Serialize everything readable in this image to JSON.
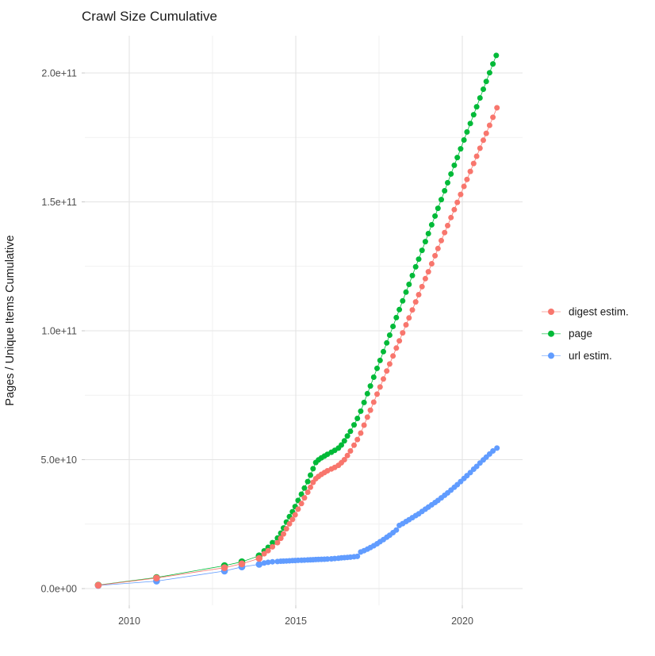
{
  "title": "Crawl Size Cumulative",
  "y_axis": {
    "label": "Pages / Unique Items Cumulative",
    "ticks": [
      "0.0e+00",
      "5.0e+10",
      "1.0e+11",
      "1.5e+11",
      "2.0e+11"
    ],
    "tick_values_e9": [
      0,
      50,
      100,
      150,
      200
    ],
    "minor_values_e9": [
      25,
      75,
      125,
      175
    ]
  },
  "x_axis": {
    "ticks": [
      "2010",
      "2015",
      "2020"
    ],
    "tick_values": [
      2010,
      2015,
      2020
    ],
    "minor_values": [
      2012.5,
      2017.5
    ]
  },
  "legend": [
    {
      "label": "digest estim.",
      "color": "#F8766D"
    },
    {
      "label": "page",
      "color": "#00BA38"
    },
    {
      "label": "url estim.",
      "color": "#619CFF"
    }
  ],
  "colors": {
    "digest": "#F8766D",
    "page": "#00BA38",
    "url": "#619CFF",
    "grid_major": "#e3e3e3",
    "grid_minor": "#f1f1f1",
    "tick_mark": "#c9c9c9",
    "tick_text": "#4d4d4d",
    "text": "#1a1a1a"
  },
  "chart_data": {
    "type": "scatter",
    "title": "Crawl Size Cumulative",
    "xlabel": "",
    "ylabel": "Pages / Unique Items Cumulative",
    "x_unit": "year (decimal)",
    "y_unit": "items, in billions (1e9)",
    "x_range": [
      2008.7,
      2021.8
    ],
    "y_range_e9": [
      -7,
      216
    ],
    "grid": "major+minor",
    "legend_position": "right",
    "series": [
      {
        "name": "url estim.",
        "color": "#619CFF",
        "points": [
          [
            2009.07,
            1.2
          ],
          [
            2010.82,
            2.9
          ],
          [
            2012.86,
            6.8
          ],
          [
            2013.38,
            8.4
          ],
          [
            2013.9,
            9.4
          ],
          [
            2014.05,
            9.9
          ],
          [
            2014.17,
            10.2
          ],
          [
            2014.3,
            10.4
          ],
          [
            2014.45,
            10.5
          ],
          [
            2014.55,
            10.6
          ],
          [
            2014.63,
            10.65
          ],
          [
            2014.72,
            10.7
          ],
          [
            2014.81,
            10.78
          ],
          [
            2014.9,
            10.85
          ],
          [
            2014.98,
            10.9
          ],
          [
            2015.07,
            10.95
          ],
          [
            2015.17,
            11.0
          ],
          [
            2015.26,
            11.05
          ],
          [
            2015.36,
            11.1
          ],
          [
            2015.44,
            11.15
          ],
          [
            2015.52,
            11.2
          ],
          [
            2015.6,
            11.25
          ],
          [
            2015.68,
            11.3
          ],
          [
            2015.77,
            11.35
          ],
          [
            2015.86,
            11.4
          ],
          [
            2015.95,
            11.45
          ],
          [
            2016.07,
            11.55
          ],
          [
            2016.17,
            11.65
          ],
          [
            2016.28,
            11.75
          ],
          [
            2016.37,
            11.9
          ],
          [
            2016.46,
            12.0
          ],
          [
            2016.55,
            12.1
          ],
          [
            2016.64,
            12.2
          ],
          [
            2016.75,
            12.35
          ],
          [
            2016.85,
            12.5
          ],
          [
            2016.95,
            14.2
          ],
          [
            2017.05,
            14.7
          ],
          [
            2017.15,
            15.3
          ],
          [
            2017.24,
            15.9
          ],
          [
            2017.34,
            16.6
          ],
          [
            2017.44,
            17.4
          ],
          [
            2017.53,
            18.2
          ],
          [
            2017.63,
            19.0
          ],
          [
            2017.73,
            19.9
          ],
          [
            2017.82,
            20.7
          ],
          [
            2017.92,
            21.7
          ],
          [
            2018.02,
            22.7
          ],
          [
            2018.11,
            24.5
          ],
          [
            2018.21,
            25.2
          ],
          [
            2018.31,
            26.0
          ],
          [
            2018.4,
            26.7
          ],
          [
            2018.5,
            27.5
          ],
          [
            2018.6,
            28.3
          ],
          [
            2018.69,
            29.0
          ],
          [
            2018.79,
            29.9
          ],
          [
            2018.89,
            30.8
          ],
          [
            2018.98,
            31.6
          ],
          [
            2019.08,
            32.5
          ],
          [
            2019.18,
            33.4
          ],
          [
            2019.27,
            34.2
          ],
          [
            2019.37,
            35.2
          ],
          [
            2019.47,
            36.2
          ],
          [
            2019.56,
            37.1
          ],
          [
            2019.66,
            38.2
          ],
          [
            2019.76,
            39.3
          ],
          [
            2019.85,
            40.3
          ],
          [
            2019.95,
            41.5
          ],
          [
            2020.05,
            42.7
          ],
          [
            2020.14,
            43.8
          ],
          [
            2020.24,
            45.0
          ],
          [
            2020.34,
            46.3
          ],
          [
            2020.43,
            47.4
          ],
          [
            2020.53,
            48.7
          ],
          [
            2020.63,
            49.9
          ],
          [
            2020.72,
            51.0
          ],
          [
            2020.82,
            52.2
          ],
          [
            2020.92,
            53.4
          ],
          [
            2021.04,
            54.5
          ]
        ]
      },
      {
        "name": "page",
        "color": "#00BA38",
        "points": [
          [
            2009.07,
            1.4
          ],
          [
            2010.82,
            4.3
          ],
          [
            2012.86,
            8.9
          ],
          [
            2013.38,
            10.4
          ],
          [
            2013.9,
            12.7
          ],
          [
            2014.05,
            14.6
          ],
          [
            2014.17,
            16.0
          ],
          [
            2014.3,
            17.8
          ],
          [
            2014.45,
            19.6
          ],
          [
            2014.55,
            21.5
          ],
          [
            2014.63,
            23.5
          ],
          [
            2014.72,
            25.8
          ],
          [
            2014.81,
            27.9
          ],
          [
            2014.9,
            29.8
          ],
          [
            2014.98,
            31.8
          ],
          [
            2015.07,
            34.2
          ],
          [
            2015.17,
            36.6
          ],
          [
            2015.26,
            39.0
          ],
          [
            2015.36,
            41.5
          ],
          [
            2015.44,
            44.0
          ],
          [
            2015.52,
            46.5
          ],
          [
            2015.6,
            48.9
          ],
          [
            2015.68,
            49.9
          ],
          [
            2015.77,
            50.7
          ],
          [
            2015.86,
            51.4
          ],
          [
            2015.95,
            52.1
          ],
          [
            2016.07,
            52.9
          ],
          [
            2016.17,
            53.6
          ],
          [
            2016.28,
            54.5
          ],
          [
            2016.37,
            55.7
          ],
          [
            2016.46,
            57.3
          ],
          [
            2016.55,
            59.2
          ],
          [
            2016.64,
            61.0
          ],
          [
            2016.75,
            63.5
          ],
          [
            2016.85,
            66.0
          ],
          [
            2016.95,
            68.8
          ],
          [
            2017.05,
            72.2
          ],
          [
            2017.15,
            75.6
          ],
          [
            2017.24,
            78.6
          ],
          [
            2017.34,
            82.0
          ],
          [
            2017.44,
            85.4
          ],
          [
            2017.53,
            88.5
          ],
          [
            2017.63,
            91.9
          ],
          [
            2017.73,
            95.3
          ],
          [
            2017.82,
            98.3
          ],
          [
            2017.92,
            101.7
          ],
          [
            2018.02,
            105.1
          ],
          [
            2018.11,
            108.2
          ],
          [
            2018.21,
            111.6
          ],
          [
            2018.31,
            115.0
          ],
          [
            2018.4,
            118.0
          ],
          [
            2018.5,
            121.4
          ],
          [
            2018.6,
            124.8
          ],
          [
            2018.69,
            127.8
          ],
          [
            2018.79,
            131.2
          ],
          [
            2018.89,
            134.6
          ],
          [
            2018.98,
            137.7
          ],
          [
            2019.08,
            141.1
          ],
          [
            2019.18,
            144.5
          ],
          [
            2019.27,
            147.5
          ],
          [
            2019.37,
            150.9
          ],
          [
            2019.47,
            154.3
          ],
          [
            2019.56,
            157.4
          ],
          [
            2019.66,
            160.8
          ],
          [
            2019.76,
            164.2
          ],
          [
            2019.85,
            167.2
          ],
          [
            2019.95,
            170.6
          ],
          [
            2020.05,
            174.0
          ],
          [
            2020.14,
            177.1
          ],
          [
            2020.24,
            180.4
          ],
          [
            2020.34,
            183.8
          ],
          [
            2020.43,
            186.9
          ],
          [
            2020.53,
            190.3
          ],
          [
            2020.63,
            193.7
          ],
          [
            2020.72,
            196.7
          ],
          [
            2020.82,
            200.1
          ],
          [
            2020.92,
            203.5
          ],
          [
            2021.02,
            206.8
          ]
        ]
      },
      {
        "name": "digest estim.",
        "color": "#F8766D",
        "points": [
          [
            2009.07,
            1.3
          ],
          [
            2010.82,
            4.1
          ],
          [
            2012.86,
            8.1
          ],
          [
            2013.38,
            9.6
          ],
          [
            2013.9,
            11.7
          ],
          [
            2014.05,
            13.5
          ],
          [
            2014.17,
            14.7
          ],
          [
            2014.3,
            16.2
          ],
          [
            2014.45,
            17.8
          ],
          [
            2014.55,
            19.5
          ],
          [
            2014.63,
            21.2
          ],
          [
            2014.72,
            23.2
          ],
          [
            2014.81,
            25.1
          ],
          [
            2014.9,
            26.8
          ],
          [
            2014.98,
            28.6
          ],
          [
            2015.07,
            30.8
          ],
          [
            2015.17,
            33.0
          ],
          [
            2015.26,
            35.2
          ],
          [
            2015.36,
            37.4
          ],
          [
            2015.44,
            39.3
          ],
          [
            2015.52,
            41.2
          ],
          [
            2015.6,
            42.6
          ],
          [
            2015.68,
            43.5
          ],
          [
            2015.77,
            44.3
          ],
          [
            2015.86,
            45.0
          ],
          [
            2015.95,
            45.7
          ],
          [
            2016.07,
            46.4
          ],
          [
            2016.17,
            47.0
          ],
          [
            2016.28,
            47.8
          ],
          [
            2016.37,
            48.8
          ],
          [
            2016.46,
            50.0
          ],
          [
            2016.55,
            51.6
          ],
          [
            2016.64,
            53.4
          ],
          [
            2016.75,
            55.6
          ],
          [
            2016.85,
            57.8
          ],
          [
            2016.95,
            60.3
          ],
          [
            2017.05,
            63.4
          ],
          [
            2017.15,
            66.5
          ],
          [
            2017.24,
            69.2
          ],
          [
            2017.34,
            72.3
          ],
          [
            2017.44,
            75.4
          ],
          [
            2017.53,
            78.2
          ],
          [
            2017.63,
            81.3
          ],
          [
            2017.73,
            84.4
          ],
          [
            2017.82,
            87.1
          ],
          [
            2017.92,
            90.2
          ],
          [
            2018.02,
            93.3
          ],
          [
            2018.11,
            96.1
          ],
          [
            2018.21,
            99.2
          ],
          [
            2018.31,
            102.3
          ],
          [
            2018.4,
            105.0
          ],
          [
            2018.5,
            108.1
          ],
          [
            2018.6,
            111.2
          ],
          [
            2018.69,
            114.0
          ],
          [
            2018.79,
            117.1
          ],
          [
            2018.89,
            120.2
          ],
          [
            2018.98,
            122.9
          ],
          [
            2019.08,
            126.0
          ],
          [
            2019.18,
            129.1
          ],
          [
            2019.27,
            131.9
          ],
          [
            2019.37,
            135.0
          ],
          [
            2019.47,
            138.1
          ],
          [
            2019.56,
            140.8
          ],
          [
            2019.66,
            143.9
          ],
          [
            2019.76,
            147.0
          ],
          [
            2019.85,
            149.8
          ],
          [
            2019.95,
            152.9
          ],
          [
            2020.05,
            156.0
          ],
          [
            2020.14,
            158.7
          ],
          [
            2020.24,
            161.8
          ],
          [
            2020.34,
            164.9
          ],
          [
            2020.43,
            167.7
          ],
          [
            2020.53,
            170.8
          ],
          [
            2020.63,
            173.9
          ],
          [
            2020.72,
            176.6
          ],
          [
            2020.82,
            179.7
          ],
          [
            2020.92,
            182.8
          ],
          [
            2021.04,
            186.5
          ]
        ]
      }
    ]
  }
}
